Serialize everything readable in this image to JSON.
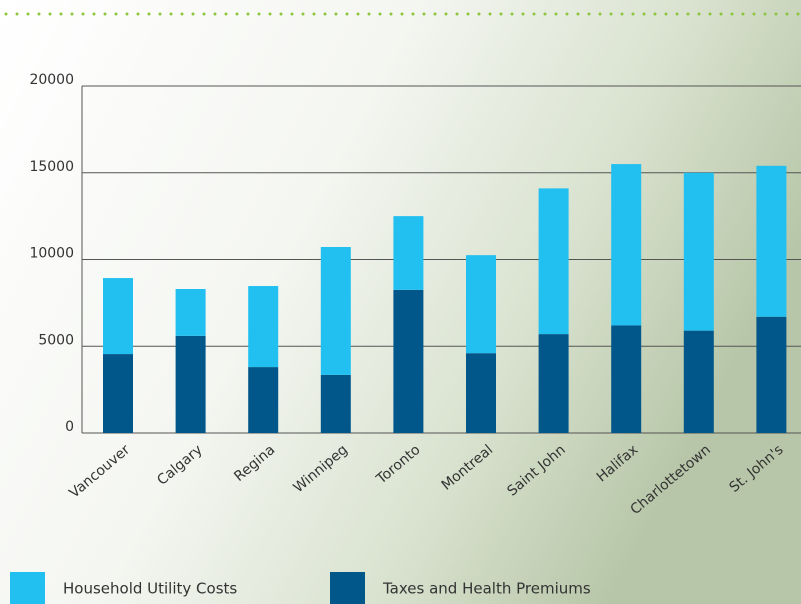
{
  "chart_data": {
    "type": "stacked-bar",
    "categories": [
      "Vancouver",
      "Calgary",
      "Regina",
      "Winnipeg",
      "Toronto",
      "Montreal",
      "Saint John",
      "Halifax",
      "Charlottetown",
      "St. John's"
    ],
    "series": [
      {
        "name": "Household Utility Costs",
        "color": "#21c0f0",
        "values": [
          4380,
          2700,
          4670,
          7370,
          4250,
          5650,
          8400,
          9300,
          9100,
          8700
        ]
      },
      {
        "name": "Taxes and Health Premiums",
        "color": "#02578a",
        "values": [
          4550,
          5600,
          3800,
          3350,
          8250,
          4600,
          5700,
          6200,
          5900,
          6700
        ]
      }
    ],
    "ylim": [
      0,
      20000
    ],
    "yticks": [
      0,
      5000,
      10000,
      15000,
      20000
    ],
    "grid": true
  }
}
